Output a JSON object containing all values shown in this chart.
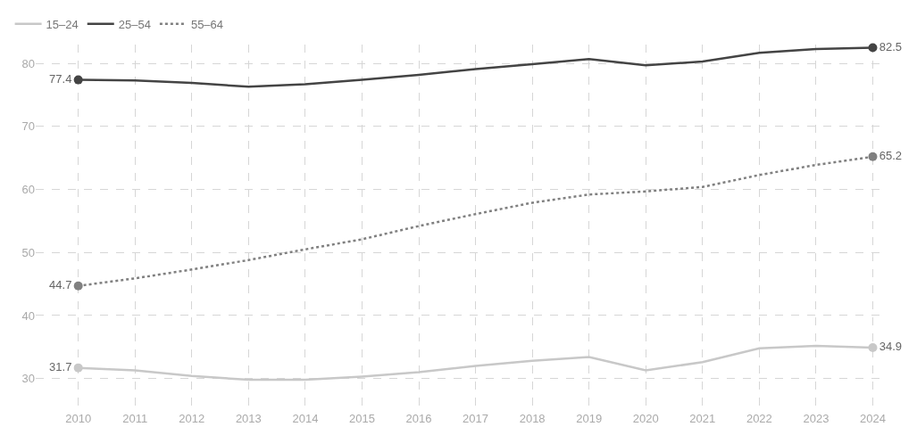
{
  "chart_data": {
    "type": "line",
    "x": [
      2010,
      2011,
      2012,
      2013,
      2014,
      2015,
      2016,
      2017,
      2018,
      2019,
      2020,
      2021,
      2022,
      2023,
      2024
    ],
    "series": [
      {
        "name": "15–24",
        "color": "#c8c8c8",
        "line_style": "solid",
        "values": [
          31.7,
          31.3,
          30.4,
          29.8,
          29.8,
          30.3,
          31.0,
          32.0,
          32.8,
          33.4,
          31.3,
          32.6,
          34.8,
          35.2,
          34.9
        ],
        "value_labels": [
          "31.7",
          null,
          null,
          null,
          null,
          null,
          null,
          null,
          null,
          null,
          null,
          null,
          null,
          null,
          "34.9"
        ]
      },
      {
        "name": "25–54",
        "color": "#444444",
        "line_style": "solid",
        "values": [
          77.4,
          77.3,
          76.9,
          76.3,
          76.7,
          77.4,
          78.2,
          79.1,
          79.9,
          80.7,
          79.7,
          80.3,
          81.7,
          82.3,
          82.5
        ],
        "value_labels": [
          "77.4",
          null,
          null,
          null,
          null,
          null,
          null,
          null,
          null,
          null,
          null,
          null,
          null,
          null,
          "82.5"
        ]
      },
      {
        "name": "55–64",
        "color": "#808080",
        "line_style": "dotted",
        "values": [
          44.7,
          45.9,
          47.3,
          48.8,
          50.5,
          52.1,
          54.2,
          56.1,
          57.9,
          59.2,
          59.7,
          60.4,
          62.3,
          63.9,
          65.2
        ],
        "value_labels": [
          "44.7",
          null,
          null,
          null,
          null,
          null,
          null,
          null,
          null,
          null,
          null,
          null,
          null,
          null,
          "65.2"
        ]
      }
    ],
    "xlim": [
      2009.25,
      2024.15
    ],
    "xticks": [
      2010,
      2011,
      2012,
      2013,
      2014,
      2015,
      2016,
      2017,
      2018,
      2019,
      2020,
      2021,
      2022,
      2023,
      2024
    ],
    "ylim": [
      25,
      83
    ],
    "yticks": [
      30,
      40,
      50,
      60,
      70,
      80
    ],
    "grid": true,
    "legend": "top left"
  }
}
